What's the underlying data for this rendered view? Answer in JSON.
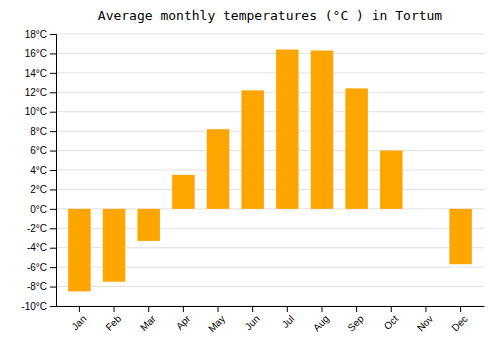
{
  "chart_data": {
    "type": "bar",
    "title": "Average monthly temperatures (°C ) in Tortum",
    "categories": [
      "Jan",
      "Feb",
      "Mar",
      "Apr",
      "May",
      "Jun",
      "Jul",
      "Aug",
      "Sep",
      "Oct",
      "Nov",
      "Dec"
    ],
    "values": [
      -8.5,
      -7.5,
      -3.3,
      3.5,
      8.2,
      12.2,
      16.4,
      16.3,
      12.4,
      6.0,
      0.0,
      -5.7
    ],
    "color": "#FFA500",
    "ylim": [
      -10,
      18
    ],
    "yticks": [
      {
        "value": -10,
        "label": "-10°C"
      },
      {
        "value": -8,
        "label": "-8°C"
      },
      {
        "value": -6,
        "label": "-6°C"
      },
      {
        "value": -4,
        "label": "-4°C"
      },
      {
        "value": -2,
        "label": "-2°C"
      },
      {
        "value": 0,
        "label": "0°C"
      },
      {
        "value": 2,
        "label": "2°C"
      },
      {
        "value": 4,
        "label": "4°C"
      },
      {
        "value": 6,
        "label": "6°C"
      },
      {
        "value": 8,
        "label": "8°C"
      },
      {
        "value": 10,
        "label": "10°C"
      },
      {
        "value": 12,
        "label": "12°C"
      },
      {
        "value": 14,
        "label": "14°C"
      },
      {
        "value": 16,
        "label": "16°C"
      },
      {
        "value": 18,
        "label": "18°C"
      }
    ],
    "grid": true
  }
}
